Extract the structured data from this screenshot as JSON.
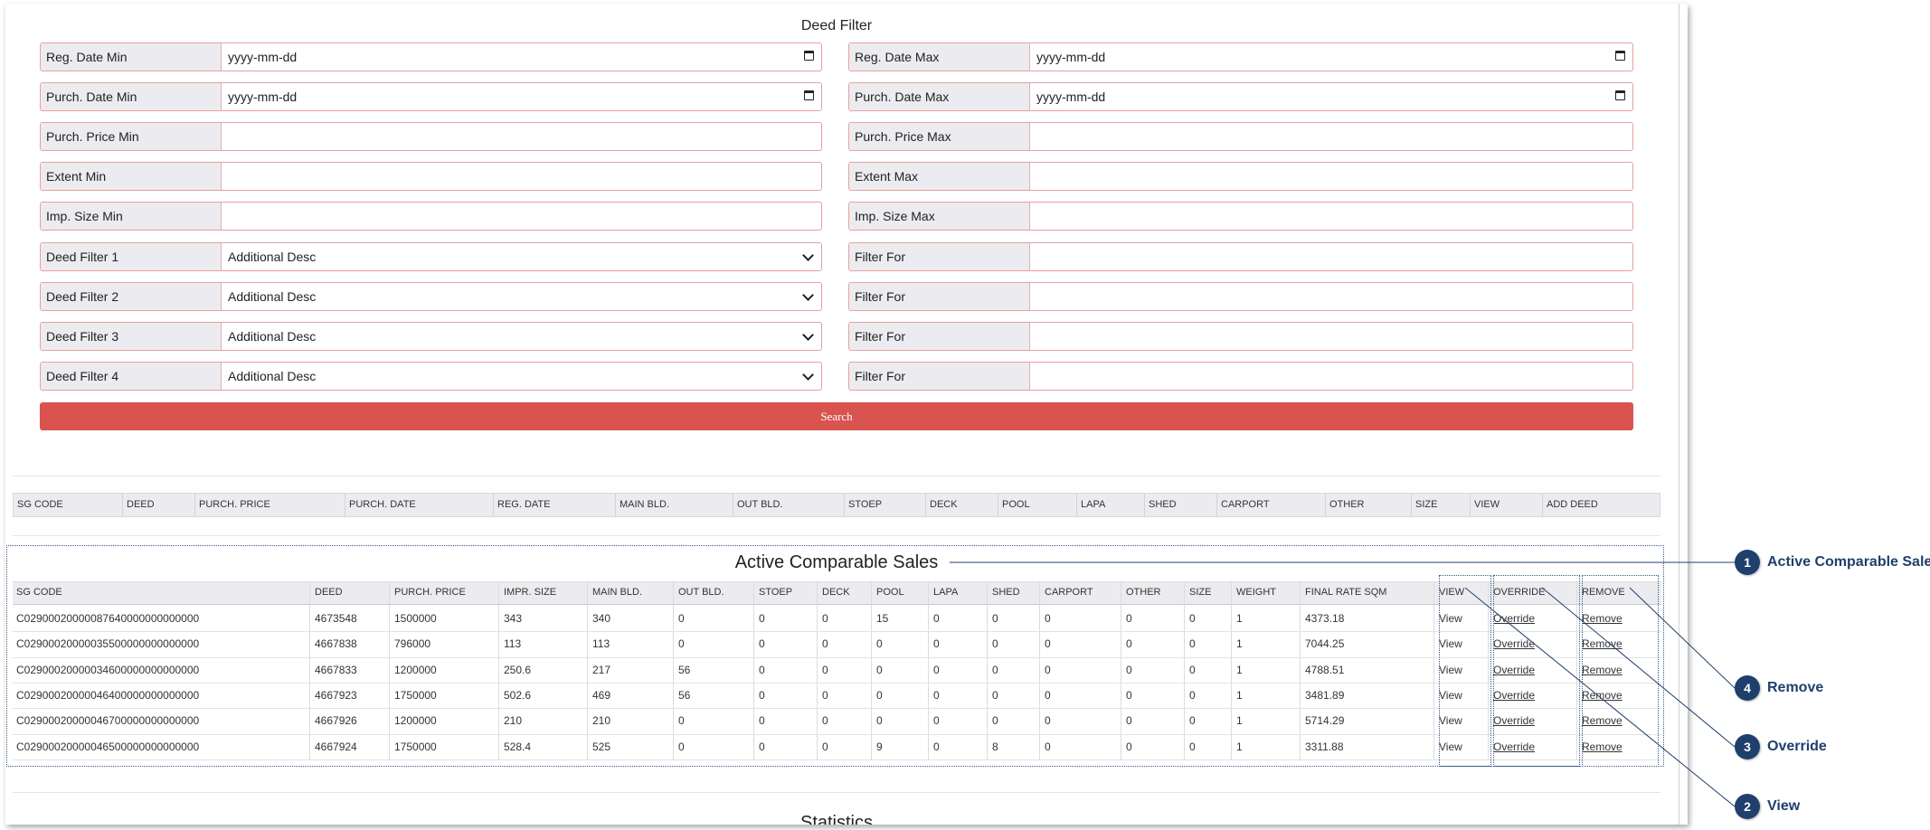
{
  "filter": {
    "title": "Deed Filter",
    "left": [
      {
        "label": "Reg. Date Min",
        "value": "yyyy-mm-dd",
        "kind": "date"
      },
      {
        "label": "Purch. Date Min",
        "value": "yyyy-mm-dd",
        "kind": "date"
      },
      {
        "label": "Purch. Price Min",
        "value": "",
        "kind": "text"
      },
      {
        "label": "Extent Min",
        "value": "",
        "kind": "text"
      },
      {
        "label": "Imp. Size Min",
        "value": "",
        "kind": "text"
      },
      {
        "label": "Deed Filter 1",
        "value": "Additional Desc",
        "kind": "select"
      },
      {
        "label": "Deed Filter 2",
        "value": "Additional Desc",
        "kind": "select"
      },
      {
        "label": "Deed Filter 3",
        "value": "Additional Desc",
        "kind": "select"
      },
      {
        "label": "Deed Filter 4",
        "value": "Additional Desc",
        "kind": "select"
      }
    ],
    "right": [
      {
        "label": "Reg. Date Max",
        "value": "yyyy-mm-dd",
        "kind": "date"
      },
      {
        "label": "Purch. Date Max",
        "value": "yyyy-mm-dd",
        "kind": "date"
      },
      {
        "label": "Purch. Price Max",
        "value": "",
        "kind": "text"
      },
      {
        "label": "Extent Max",
        "value": "",
        "kind": "text"
      },
      {
        "label": "Imp. Size Max",
        "value": "",
        "kind": "text"
      },
      {
        "label": "Filter For",
        "value": "",
        "kind": "text"
      },
      {
        "label": "Filter For",
        "value": "",
        "kind": "text"
      },
      {
        "label": "Filter For",
        "value": "",
        "kind": "text"
      },
      {
        "label": "Filter For",
        "value": "",
        "kind": "text"
      }
    ],
    "search_label": "Search"
  },
  "deed_table": {
    "headers": [
      "SG CODE",
      "DEED",
      "PURCH. PRICE",
      "PURCH. DATE",
      "REG. DATE",
      "MAIN BLD.",
      "OUT BLD.",
      "STOEP",
      "DECK",
      "POOL",
      "LAPA",
      "SHED",
      "CARPORT",
      "OTHER",
      "SIZE",
      "VIEW",
      "ADD DEED"
    ]
  },
  "comparables": {
    "title": "Active Comparable Sales",
    "headers": [
      "SG CODE",
      "DEED",
      "PURCH. PRICE",
      "IMPR. SIZE",
      "MAIN BLD.",
      "OUT BLD.",
      "STOEP",
      "DECK",
      "POOL",
      "LAPA",
      "SHED",
      "CARPORT",
      "OTHER",
      "SIZE",
      "WEIGHT",
      "FINAL RATE SQM",
      "VIEW",
      "OVERRIDE",
      "REMOVE"
    ],
    "rows": [
      [
        "C02900020000087640000000000000",
        "4673548",
        "1500000",
        "343",
        "340",
        "0",
        "0",
        "0",
        "15",
        "0",
        "0",
        "0",
        "0",
        "0",
        "1",
        "4373.18",
        "View",
        "Override",
        "Remove"
      ],
      [
        "C02900020000035500000000000000",
        "4667838",
        "796000",
        "113",
        "113",
        "0",
        "0",
        "0",
        "0",
        "0",
        "0",
        "0",
        "0",
        "0",
        "1",
        "7044.25",
        "View",
        "Override",
        "Remove"
      ],
      [
        "C02900020000034600000000000000",
        "4667833",
        "1200000",
        "250.6",
        "217",
        "56",
        "0",
        "0",
        "0",
        "0",
        "0",
        "0",
        "0",
        "0",
        "1",
        "4788.51",
        "View",
        "Override",
        "Remove"
      ],
      [
        "C02900020000046400000000000000",
        "4667923",
        "1750000",
        "502.6",
        "469",
        "56",
        "0",
        "0",
        "0",
        "0",
        "0",
        "0",
        "0",
        "0",
        "1",
        "3481.89",
        "View",
        "Override",
        "Remove"
      ],
      [
        "C02900020000046700000000000000",
        "4667926",
        "1200000",
        "210",
        "210",
        "0",
        "0",
        "0",
        "0",
        "0",
        "0",
        "0",
        "0",
        "0",
        "1",
        "5714.29",
        "View",
        "Override",
        "Remove"
      ],
      [
        "C02900020000046500000000000000",
        "4667924",
        "1750000",
        "528.4",
        "525",
        "0",
        "0",
        "0",
        "9",
        "0",
        "8",
        "0",
        "0",
        "0",
        "1",
        "3311.88",
        "View",
        "Override",
        "Remove"
      ]
    ]
  },
  "statistics_title": "Statistics",
  "callouts": [
    {
      "num": "1",
      "label": "Active Comparable Sales"
    },
    {
      "num": "2",
      "label": "View"
    },
    {
      "num": "3",
      "label": "Override"
    },
    {
      "num": "4",
      "label": "Remove"
    }
  ],
  "colors": {
    "accent": "#d9534f",
    "callout": "#1f3f6c",
    "field_border": "#e8a0a0"
  }
}
